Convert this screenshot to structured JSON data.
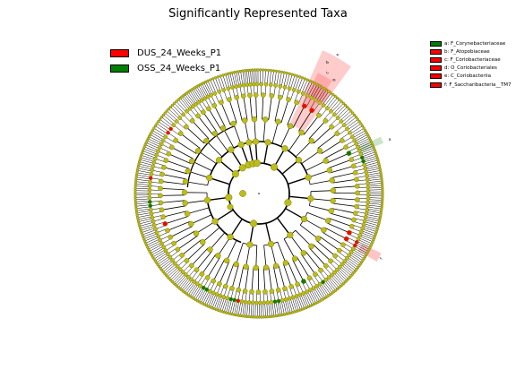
{
  "title": "Significantly Represented Taxa",
  "colors": {
    "node_default": "#bdbd1a",
    "node_edge": "#7a7a0f",
    "branch": "#000000",
    "class_dus": "#ff0000",
    "class_oss": "#008000",
    "highlight_dus": "#ff6b6b",
    "highlight_oss": "#7dbf7d"
  },
  "class_legend": [
    {
      "label": "DUS_24_Weeks_P1",
      "color": "#ff0000"
    },
    {
      "label": "OSS_24_Weeks_P1",
      "color": "#008000"
    }
  ],
  "clade_legend": [
    {
      "label": "a: F_Corynebacteriaceae",
      "color": "#008000"
    },
    {
      "label": "b: F_Atopobiaceae",
      "color": "#ff0000"
    },
    {
      "label": "c: F_Coriobacteriaceae",
      "color": "#ff0000"
    },
    {
      "label": "d: O_Coriobacteriales",
      "color": "#ff0000"
    },
    {
      "label": "e: C_Coriobacteriia",
      "color": "#ff0000"
    },
    {
      "label": "f: F_Saccharibacteria__TM7",
      "color": "#ff0000"
    }
  ],
  "sector_labels": [
    "a",
    "b",
    "c",
    "d",
    "e",
    "f"
  ]
}
